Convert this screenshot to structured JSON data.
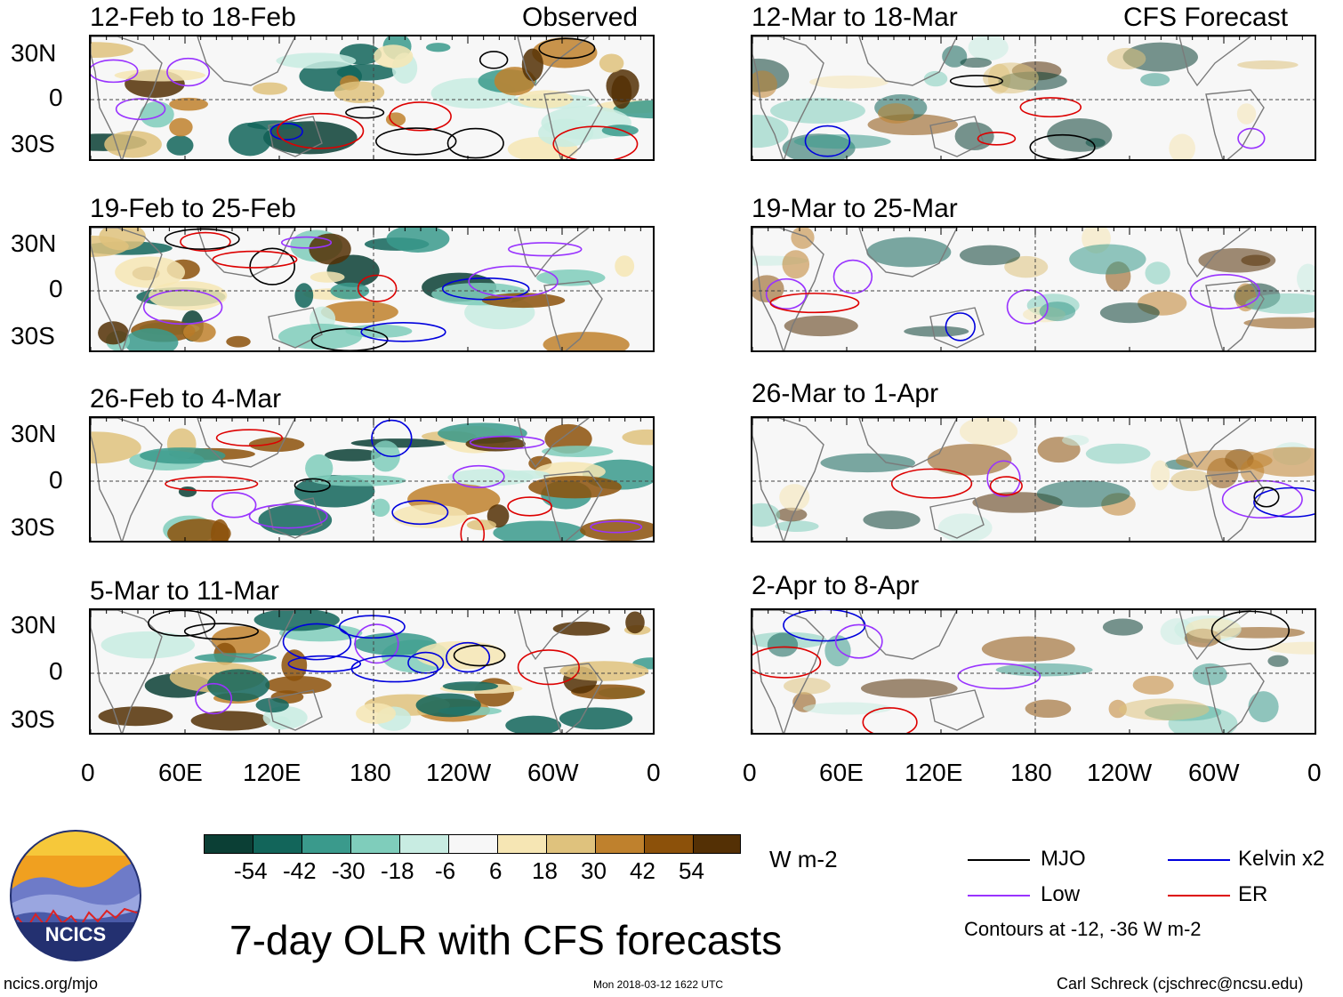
{
  "figure": {
    "title": "7-day OLR with CFS forecasts",
    "units": "W m-2",
    "url": "ncics.org/mjo",
    "timestamp": "Mon 2018-03-12 1622 UTC",
    "author": "Carl Schreck (cjschrec@ncsu.edu)",
    "logo_text": "NCICS",
    "contours_note": "Contours at -12, -36 W m-2"
  },
  "columns": [
    {
      "label": "Observed"
    },
    {
      "label": "CFS Forecast"
    }
  ],
  "panels": [
    {
      "period": "12-Feb to 18-Feb",
      "column": 0,
      "row": 0
    },
    {
      "period": "19-Feb to 25-Feb",
      "column": 0,
      "row": 1
    },
    {
      "period": "26-Feb to 4-Mar",
      "column": 0,
      "row": 2
    },
    {
      "period": "5-Mar to 11-Mar",
      "column": 0,
      "row": 3
    },
    {
      "period": "12-Mar to 18-Mar",
      "column": 1,
      "row": 0
    },
    {
      "period": "19-Mar to 25-Mar",
      "column": 1,
      "row": 1
    },
    {
      "period": "26-Mar to 1-Apr",
      "column": 1,
      "row": 2
    },
    {
      "period": "2-Apr to 8-Apr",
      "column": 1,
      "row": 3
    }
  ],
  "axes": {
    "lat_ticks": [
      "30N",
      "0",
      "30S"
    ],
    "lon_ticks": [
      "0",
      "60E",
      "120E",
      "180",
      "120W",
      "60W",
      "0"
    ]
  },
  "colorbar": {
    "ticks": [
      "-54",
      "-42",
      "-30",
      "-18",
      "-6",
      "6",
      "18",
      "30",
      "42",
      "54"
    ],
    "colors": [
      "#0b3f35",
      "#12655a",
      "#3a9a8c",
      "#7fcdbb",
      "#c8ece2",
      "#f7f7f7",
      "#f6e6b4",
      "#dfc27d",
      "#bf812d",
      "#8c510a",
      "#543005"
    ]
  },
  "legend": [
    {
      "name": "MJO",
      "color": "#000000"
    },
    {
      "name": "Kelvin x2",
      "color": "#0000dd"
    },
    {
      "name": "Low",
      "color": "#9933ff"
    },
    {
      "name": "ER",
      "color": "#dd0000"
    }
  ]
}
